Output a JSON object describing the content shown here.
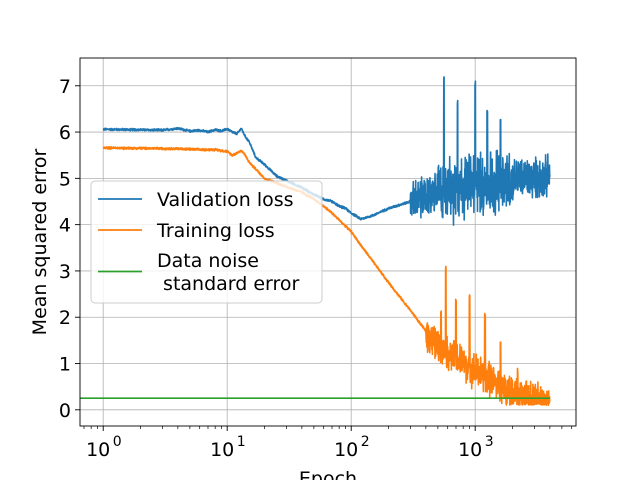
{
  "chart_data": {
    "type": "line",
    "title": "",
    "xlabel": "Epoch",
    "ylabel": "Mean squared error",
    "xscale": "log",
    "xlim": [
      0.65,
      6500
    ],
    "ylim": [
      -0.35,
      7.6
    ],
    "x_ticks": [
      {
        "value": 1,
        "base": "10",
        "exp": "0"
      },
      {
        "value": 10,
        "base": "10",
        "exp": "1"
      },
      {
        "value": 100,
        "base": "10",
        "exp": "2"
      },
      {
        "value": 1000,
        "base": "10",
        "exp": "3"
      }
    ],
    "y_ticks": [
      0,
      1,
      2,
      3,
      4,
      5,
      6,
      7
    ],
    "grid": true,
    "legend": {
      "placement": "center-left",
      "entries": [
        {
          "label": [
            "Validation loss"
          ],
          "color": "#1f77b4"
        },
        {
          "label": [
            "Training loss"
          ],
          "color": "#ff7f0e"
        },
        {
          "label": [
            "Data noise",
            " standard error"
          ],
          "color": "#2ca02c"
        }
      ]
    },
    "series": [
      {
        "name": "Validation loss",
        "color": "#1f77b4",
        "x": [
          1,
          2,
          3,
          4,
          5,
          6,
          7,
          8,
          9,
          10,
          11,
          12,
          13,
          14,
          15,
          17,
          20,
          25,
          30,
          40,
          50,
          60,
          70,
          80,
          90,
          100,
          120,
          150,
          200,
          300,
          400,
          500,
          700,
          1000,
          1500,
          2000,
          3000,
          4000
        ],
        "y": [
          6.06,
          6.05,
          6.04,
          6.08,
          6.02,
          6.04,
          6.0,
          6.05,
          6.02,
          6.07,
          6.0,
          5.96,
          6.08,
          5.9,
          5.8,
          5.45,
          5.3,
          5.05,
          4.95,
          4.8,
          4.65,
          4.55,
          4.5,
          4.4,
          4.35,
          4.25,
          4.12,
          4.2,
          4.35,
          4.5,
          4.6,
          4.7,
          4.8,
          4.9,
          4.95,
          5.0,
          5.0,
          5.05
        ],
        "noise": [
          {
            "from": 300,
            "to": 4000,
            "amplitude": 0.35
          },
          {
            "from": 500,
            "to": 2000,
            "amplitude": 0.55
          }
        ],
        "spikes": [
          {
            "x": 560,
            "y": 7.25
          },
          {
            "x": 720,
            "y": 6.7
          },
          {
            "x": 1000,
            "y": 7.1
          },
          {
            "x": 1250,
            "y": 6.5
          },
          {
            "x": 1600,
            "y": 6.3
          }
        ]
      },
      {
        "name": "Training loss",
        "color": "#ff7f0e",
        "x": [
          1,
          2,
          4,
          6,
          8,
          10,
          11,
          12,
          13,
          14,
          15,
          17,
          20,
          25,
          30,
          40,
          50,
          60,
          70,
          80,
          100,
          120,
          150,
          200,
          300,
          400,
          500,
          700,
          1000,
          1500,
          2000,
          3000,
          4000
        ],
        "y": [
          5.66,
          5.65,
          5.64,
          5.62,
          5.62,
          5.58,
          5.5,
          5.55,
          5.6,
          5.5,
          5.35,
          5.2,
          5.0,
          4.9,
          4.82,
          4.7,
          4.55,
          4.4,
          4.25,
          4.1,
          3.85,
          3.55,
          3.2,
          2.75,
          2.15,
          1.7,
          1.35,
          1.1,
          0.85,
          0.55,
          0.35,
          0.2,
          0.16
        ],
        "noise": [
          {
            "from": 400,
            "to": 4000,
            "amplitude": 0.3
          }
        ],
        "spikes": [
          {
            "x": 580,
            "y": 3.1
          },
          {
            "x": 530,
            "y": 2.15
          },
          {
            "x": 700,
            "y": 2.4
          },
          {
            "x": 900,
            "y": 2.5
          },
          {
            "x": 1200,
            "y": 2.1
          },
          {
            "x": 1600,
            "y": 1.5
          },
          {
            "x": 2200,
            "y": 0.9
          }
        ]
      },
      {
        "name": "Data noise\n standard error",
        "color": "#2ca02c",
        "x": [
          0.65,
          4000
        ],
        "y": [
          0.25,
          0.25
        ]
      }
    ]
  }
}
